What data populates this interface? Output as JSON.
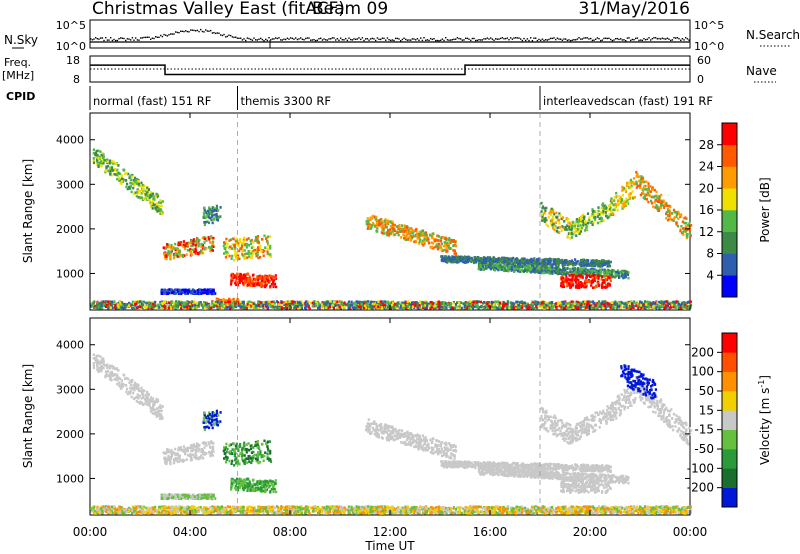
{
  "header": {
    "title": "Christmas Valley East (fitACF)",
    "beam": "Beam 09",
    "date": "31/May/2016"
  },
  "noise_panel": {
    "left_label": "N.Sky",
    "right_label": "N.Search",
    "left_ticks": [
      "10^5",
      "10^0"
    ],
    "right_ticks": [
      "10^5",
      "10^0"
    ]
  },
  "freq_panel": {
    "left_label_line1": "Freq.",
    "left_label_line2": "[MHz]",
    "right_label": "Nave",
    "left_ticks": [
      "18",
      "8"
    ],
    "right_ticks": [
      "60",
      "0"
    ],
    "freq_segments": [
      {
        "t0": 0.0,
        "t1": 3.0,
        "mhz": 14.5
      },
      {
        "t0": 3.0,
        "t1": 15.0,
        "mhz": 10.9
      },
      {
        "t0": 15.0,
        "t1": 24.0,
        "mhz": 14.5
      }
    ],
    "nave_level": 30
  },
  "cpid": {
    "label": "CPID",
    "segments": [
      {
        "t0": 0.0,
        "t1": 5.9,
        "label": "normal (fast) 151 RF"
      },
      {
        "t0": 5.9,
        "t1": 18.0,
        "label": "themis 3300 RF"
      },
      {
        "t0": 18.0,
        "t1": 24.0,
        "label": "interleavedscan (fast) 191 RF"
      }
    ]
  },
  "colors": {
    "power": [
      "#0000ff",
      "#2e5fae",
      "#3c8a46",
      "#52b848",
      "#f0e000",
      "#ff9c00",
      "#ff5a00",
      "#ff0000"
    ],
    "velocity": [
      "#0018d8",
      "#1a6f2e",
      "#2a9a3a",
      "#66c040",
      "#c8c8c8",
      "#f2d000",
      "#ff9000",
      "#ff5000",
      "#ff0000"
    ],
    "ground": "#c8c8c8"
  },
  "power_colorbar": {
    "label": "Power [dB]",
    "ticks": [
      "4",
      "8",
      "12",
      "16",
      "20",
      "24",
      "28"
    ]
  },
  "velocity_colorbar": {
    "label_main": "Velocity [m s",
    "label_exp": "-1",
    "label_end": "]",
    "ticks": [
      "200",
      "100",
      "50",
      "15",
      "-15",
      "-50",
      "-100",
      "-200"
    ]
  },
  "chart_data": {
    "type": "heatmap",
    "xlabel": "Time UT",
    "ylabel": "Slant Range [km]",
    "xlim": [
      0,
      24
    ],
    "ylim": [
      180,
      4600
    ],
    "x_tick_labels": [
      "00:00",
      "04:00",
      "08:00",
      "12:00",
      "16:00",
      "20:00",
      "00:00"
    ],
    "y_tick_labels": [
      "1000",
      "2000",
      "3000",
      "4000"
    ],
    "cpid_boundaries_hours": [
      5.9,
      18.0
    ],
    "power_blobs": [
      {
        "t0": 0.1,
        "t1": 2.9,
        "r0": 3700,
        "r1": 2500,
        "w": 200,
        "c": [
          2,
          3,
          4
        ]
      },
      {
        "t0": 2.9,
        "t1": 4.9,
        "r0": 1500,
        "r1": 1700,
        "w": 180,
        "c": [
          3,
          5,
          7
        ]
      },
      {
        "t0": 4.5,
        "t1": 5.2,
        "r0": 2300,
        "r1": 2400,
        "w": 200,
        "c": [
          1,
          2,
          3
        ]
      },
      {
        "t0": 5.3,
        "t1": 7.2,
        "r0": 1550,
        "r1": 1650,
        "w": 250,
        "c": [
          3,
          4,
          6
        ]
      },
      {
        "t0": 5.6,
        "t1": 7.4,
        "r0": 900,
        "r1": 850,
        "w": 140,
        "c": [
          6,
          7,
          7
        ]
      },
      {
        "t0": 2.8,
        "t1": 5.0,
        "r0": 620,
        "r1": 620,
        "w": 50,
        "c": [
          0,
          1
        ]
      },
      {
        "t0": 5.0,
        "t1": 5.9,
        "r0": 400,
        "r1": 400,
        "w": 60,
        "c": [
          5,
          6
        ]
      },
      {
        "t0": 11.0,
        "t1": 14.6,
        "r0": 2200,
        "r1": 1600,
        "w": 170,
        "c": [
          3,
          5,
          6
        ]
      },
      {
        "t0": 14.0,
        "t1": 20.8,
        "r0": 1350,
        "r1": 1250,
        "w": 70,
        "c": [
          1,
          2
        ]
      },
      {
        "t0": 15.5,
        "t1": 21.5,
        "r0": 1200,
        "r1": 1000,
        "w": 80,
        "c": [
          1,
          2,
          3
        ]
      },
      {
        "t0": 18.0,
        "t1": 19.2,
        "r0": 2400,
        "r1": 2000,
        "w": 220,
        "c": [
          2,
          4,
          5
        ]
      },
      {
        "t0": 19.2,
        "t1": 20.8,
        "r0": 2000,
        "r1": 2500,
        "w": 200,
        "c": [
          2,
          3,
          4
        ]
      },
      {
        "t0": 20.8,
        "t1": 21.8,
        "r0": 2500,
        "r1": 3000,
        "w": 250,
        "c": [
          3,
          4,
          5
        ]
      },
      {
        "t0": 21.8,
        "t1": 24.0,
        "r0": 3100,
        "r1": 1950,
        "w": 220,
        "c": [
          3,
          5,
          6
        ]
      },
      {
        "t0": 18.8,
        "t1": 20.8,
        "r0": 850,
        "r1": 850,
        "w": 140,
        "c": [
          6,
          7,
          7
        ]
      },
      {
        "t0": 0.0,
        "t1": 24.0,
        "r0": 320,
        "r1": 320,
        "w": 80,
        "c": [
          1,
          2,
          3,
          4,
          7
        ]
      }
    ],
    "velocity_blobs": [
      {
        "t0": 0.1,
        "t1": 2.9,
        "r0": 3700,
        "r1": 2500,
        "w": 200,
        "c": [
          4,
          4,
          4
        ]
      },
      {
        "t0": 2.9,
        "t1": 4.9,
        "r0": 1500,
        "r1": 1700,
        "w": 180,
        "c": [
          4,
          4
        ]
      },
      {
        "t0": 4.5,
        "t1": 5.2,
        "r0": 2300,
        "r1": 2400,
        "w": 200,
        "c": [
          0,
          0,
          3
        ]
      },
      {
        "t0": 5.3,
        "t1": 7.2,
        "r0": 1550,
        "r1": 1650,
        "w": 250,
        "c": [
          1,
          2,
          3
        ]
      },
      {
        "t0": 5.6,
        "t1": 7.4,
        "r0": 900,
        "r1": 850,
        "w": 140,
        "c": [
          2,
          3
        ]
      },
      {
        "t0": 2.8,
        "t1": 5.0,
        "r0": 620,
        "r1": 620,
        "w": 50,
        "c": [
          3,
          4
        ]
      },
      {
        "t0": 11.0,
        "t1": 14.6,
        "r0": 2200,
        "r1": 1600,
        "w": 170,
        "c": [
          4
        ]
      },
      {
        "t0": 14.0,
        "t1": 20.8,
        "r0": 1350,
        "r1": 1250,
        "w": 70,
        "c": [
          4
        ]
      },
      {
        "t0": 15.5,
        "t1": 21.5,
        "r0": 1200,
        "r1": 1000,
        "w": 80,
        "c": [
          4
        ]
      },
      {
        "t0": 18.0,
        "t1": 19.2,
        "r0": 2400,
        "r1": 2000,
        "w": 220,
        "c": [
          4
        ]
      },
      {
        "t0": 19.2,
        "t1": 20.8,
        "r0": 2000,
        "r1": 2500,
        "w": 200,
        "c": [
          4
        ]
      },
      {
        "t0": 20.8,
        "t1": 21.8,
        "r0": 2500,
        "r1": 3000,
        "w": 250,
        "c": [
          4
        ]
      },
      {
        "t0": 21.8,
        "t1": 24.0,
        "r0": 3100,
        "r1": 1950,
        "w": 220,
        "c": [
          4
        ]
      },
      {
        "t0": 18.8,
        "t1": 20.8,
        "r0": 850,
        "r1": 850,
        "w": 140,
        "c": [
          4
        ]
      },
      {
        "t0": 21.2,
        "t1": 22.6,
        "r0": 3400,
        "r1": 3000,
        "w": 230,
        "c": [
          0,
          0,
          0
        ]
      },
      {
        "t0": 0.0,
        "t1": 24.0,
        "r0": 320,
        "r1": 320,
        "w": 80,
        "c": [
          3,
          4,
          5,
          6
        ]
      }
    ]
  }
}
